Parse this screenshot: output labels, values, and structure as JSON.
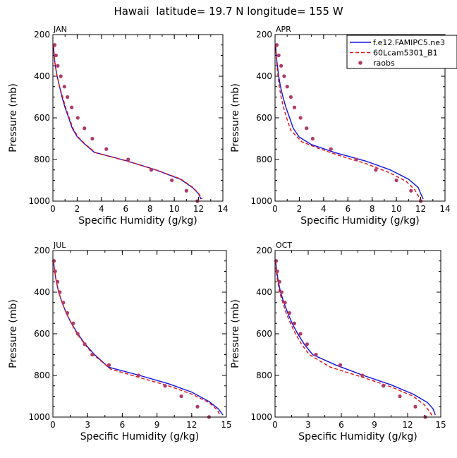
{
  "figure": {
    "title": "Hawaii  latitude= 19.7 N longitude= 155 W"
  },
  "colors": {
    "model1": "#1010e0",
    "model2": "#e01010",
    "obs": "#b03a6a",
    "axis": "#000000"
  },
  "legend": {
    "entries": [
      {
        "label": "f.e12.FAMIPC5.ne3",
        "style": "solid",
        "color": "#1010e0"
      },
      {
        "label": "60Lcam5301_B1",
        "style": "dashed",
        "color": "#e01010"
      },
      {
        "label": "raobs",
        "style": "dot",
        "color": "#b03a6a"
      }
    ]
  },
  "chart_data": [
    {
      "type": "line",
      "panel_label": "JAN",
      "xlabel": "Specific Humidity (g/kg)",
      "ylabel": "Pressure (mb)",
      "xlim": [
        0,
        14
      ],
      "xticks": [
        0,
        2,
        4,
        6,
        8,
        10,
        12,
        14
      ],
      "ylim": [
        1000,
        200
      ],
      "yticks": [
        200,
        400,
        600,
        800,
        1000
      ],
      "series": [
        {
          "name": "f.e12.FAMIPC5.ne3",
          "style": "solid",
          "points": [
            [
              0.05,
              250
            ],
            [
              0.1,
              300
            ],
            [
              0.2,
              350
            ],
            [
              0.35,
              400
            ],
            [
              0.55,
              450
            ],
            [
              0.75,
              500
            ],
            [
              1.0,
              550
            ],
            [
              1.3,
              600
            ],
            [
              1.6,
              650
            ],
            [
              2.0,
              690
            ],
            [
              2.6,
              725
            ],
            [
              3.4,
              765
            ],
            [
              6.0,
              805
            ],
            [
              8.5,
              850
            ],
            [
              10.5,
              895
            ],
            [
              11.5,
              935
            ],
            [
              12.0,
              965
            ],
            [
              12.2,
              990
            ]
          ]
        },
        {
          "name": "60Lcam5301_B1",
          "style": "dashed",
          "points": [
            [
              0.05,
              250
            ],
            [
              0.1,
              300
            ],
            [
              0.2,
              350
            ],
            [
              0.35,
              400
            ],
            [
              0.55,
              450
            ],
            [
              0.8,
              500
            ],
            [
              1.05,
              550
            ],
            [
              1.35,
              600
            ],
            [
              1.65,
              650
            ],
            [
              2.05,
              690
            ],
            [
              2.7,
              728
            ],
            [
              3.5,
              767
            ],
            [
              6.0,
              806
            ],
            [
              8.5,
              850
            ],
            [
              10.5,
              893
            ],
            [
              11.5,
              933
            ],
            [
              12.0,
              963
            ],
            [
              12.3,
              990
            ]
          ]
        },
        {
          "name": "raobs",
          "style": "dot",
          "points": [
            [
              0.15,
              250
            ],
            [
              0.25,
              300
            ],
            [
              0.4,
              350
            ],
            [
              0.65,
              400
            ],
            [
              0.95,
              450
            ],
            [
              1.2,
              500
            ],
            [
              1.55,
              550
            ],
            [
              2.05,
              600
            ],
            [
              2.6,
              650
            ],
            [
              3.25,
              700
            ],
            [
              4.4,
              750
            ],
            [
              6.2,
              800
            ],
            [
              8.1,
              850
            ],
            [
              9.8,
              900
            ],
            [
              11.0,
              950
            ],
            [
              11.9,
              1000
            ]
          ]
        }
      ]
    },
    {
      "type": "line",
      "panel_label": "APR",
      "xlabel": "Specific Humidity (g/kg)",
      "ylabel": "Pressure (mb)",
      "xlim": [
        0,
        14
      ],
      "xticks": [
        0,
        2,
        4,
        6,
        8,
        10,
        12,
        14
      ],
      "ylim": [
        1000,
        200
      ],
      "yticks": [
        200,
        400,
        600,
        800,
        1000
      ],
      "series": [
        {
          "name": "f.e12.FAMIPC5.ne3",
          "style": "solid",
          "points": [
            [
              0.05,
              250
            ],
            [
              0.1,
              300
            ],
            [
              0.2,
              350
            ],
            [
              0.3,
              400
            ],
            [
              0.45,
              450
            ],
            [
              0.65,
              500
            ],
            [
              0.9,
              550
            ],
            [
              1.2,
              600
            ],
            [
              1.5,
              650
            ],
            [
              2.0,
              693
            ],
            [
              3.0,
              728
            ],
            [
              5.0,
              768
            ],
            [
              7.5,
              808
            ],
            [
              9.5,
              850
            ],
            [
              11.0,
              895
            ],
            [
              11.8,
              935
            ],
            [
              12.0,
              965
            ],
            [
              12.2,
              990
            ]
          ]
        },
        {
          "name": "60Lcam5301_B1",
          "style": "dashed",
          "points": [
            [
              0.05,
              250
            ],
            [
              0.1,
              300
            ],
            [
              0.15,
              350
            ],
            [
              0.25,
              400
            ],
            [
              0.35,
              450
            ],
            [
              0.5,
              500
            ],
            [
              0.7,
              550
            ],
            [
              0.95,
              600
            ],
            [
              1.3,
              660
            ],
            [
              2.2,
              715
            ],
            [
              3.5,
              745
            ],
            [
              5.5,
              785
            ],
            [
              7.5,
              820
            ],
            [
              9.5,
              865
            ],
            [
              10.8,
              905
            ],
            [
              11.5,
              945
            ],
            [
              11.8,
              975
            ],
            [
              12.0,
              1000
            ]
          ]
        },
        {
          "name": "raobs",
          "style": "dot",
          "points": [
            [
              0.15,
              250
            ],
            [
              0.3,
              300
            ],
            [
              0.5,
              350
            ],
            [
              0.75,
              400
            ],
            [
              1.0,
              450
            ],
            [
              1.3,
              500
            ],
            [
              1.6,
              550
            ],
            [
              2.1,
              600
            ],
            [
              2.6,
              650
            ],
            [
              3.1,
              700
            ],
            [
              4.6,
              750
            ],
            [
              6.7,
              800
            ],
            [
              8.3,
              850
            ],
            [
              10.0,
              900
            ],
            [
              11.2,
              950
            ],
            [
              12.0,
              1000
            ]
          ]
        }
      ]
    },
    {
      "type": "line",
      "panel_label": "JUL",
      "xlabel": "Specific Humidity (g/kg)",
      "ylabel": "Pressure (mb)",
      "xlim": [
        0,
        15
      ],
      "xticks": [
        0,
        3,
        6,
        9,
        12,
        15
      ],
      "ylim": [
        1000,
        200
      ],
      "yticks": [
        200,
        400,
        600,
        800,
        1000
      ],
      "series": [
        {
          "name": "f.e12.FAMIPC5.ne3",
          "style": "solid",
          "points": [
            [
              0.05,
              250
            ],
            [
              0.15,
              300
            ],
            [
              0.3,
              350
            ],
            [
              0.5,
              400
            ],
            [
              0.8,
              450
            ],
            [
              1.15,
              500
            ],
            [
              1.6,
              550
            ],
            [
              2.15,
              600
            ],
            [
              2.8,
              650
            ],
            [
              3.6,
              700
            ],
            [
              4.8,
              760
            ],
            [
              7.5,
              800
            ],
            [
              10.0,
              840
            ],
            [
              12.0,
              880
            ],
            [
              13.5,
              925
            ],
            [
              14.3,
              960
            ],
            [
              14.7,
              990
            ]
          ]
        },
        {
          "name": "60Lcam5301_B1",
          "style": "dashed",
          "points": [
            [
              0.05,
              250
            ],
            [
              0.15,
              300
            ],
            [
              0.3,
              350
            ],
            [
              0.5,
              400
            ],
            [
              0.8,
              450
            ],
            [
              1.15,
              500
            ],
            [
              1.6,
              550
            ],
            [
              2.1,
              600
            ],
            [
              2.75,
              650
            ],
            [
              3.5,
              700
            ],
            [
              5.0,
              770
            ],
            [
              7.5,
              810
            ],
            [
              10.0,
              850
            ],
            [
              12.0,
              890
            ],
            [
              13.5,
              930
            ],
            [
              14.2,
              965
            ],
            [
              14.5,
              995
            ]
          ]
        },
        {
          "name": "raobs",
          "style": "dot",
          "points": [
            [
              0.1,
              250
            ],
            [
              0.2,
              300
            ],
            [
              0.4,
              350
            ],
            [
              0.6,
              400
            ],
            [
              0.9,
              450
            ],
            [
              1.25,
              500
            ],
            [
              1.75,
              550
            ],
            [
              2.15,
              600
            ],
            [
              2.75,
              650
            ],
            [
              3.4,
              700
            ],
            [
              4.85,
              750
            ],
            [
              7.4,
              800
            ],
            [
              9.7,
              850
            ],
            [
              11.1,
              900
            ],
            [
              12.5,
              950
            ],
            [
              13.5,
              1000
            ]
          ]
        }
      ]
    },
    {
      "type": "line",
      "panel_label": "OCT",
      "xlabel": "Specific Humidity (g/kg)",
      "ylabel": "Pressure (mb)",
      "xlim": [
        0,
        15
      ],
      "xticks": [
        0,
        3,
        6,
        9,
        12,
        15
      ],
      "ylim": [
        1000,
        200
      ],
      "yticks": [
        200,
        400,
        600,
        800,
        1000
      ],
      "series": [
        {
          "name": "f.e12.FAMIPC5.ne3",
          "style": "solid",
          "points": [
            [
              0.05,
              250
            ],
            [
              0.15,
              300
            ],
            [
              0.3,
              350
            ],
            [
              0.5,
              400
            ],
            [
              0.8,
              450
            ],
            [
              1.15,
              500
            ],
            [
              1.55,
              550
            ],
            [
              2.05,
              600
            ],
            [
              2.65,
              650
            ],
            [
              3.4,
              700
            ],
            [
              5.5,
              750
            ],
            [
              8.0,
              800
            ],
            [
              10.5,
              845
            ],
            [
              12.5,
              890
            ],
            [
              13.8,
              930
            ],
            [
              14.3,
              960
            ],
            [
              14.5,
              990
            ]
          ]
        },
        {
          "name": "60Lcam5301_B1",
          "style": "dashed",
          "points": [
            [
              0.05,
              250
            ],
            [
              0.1,
              300
            ],
            [
              0.25,
              350
            ],
            [
              0.4,
              400
            ],
            [
              0.7,
              450
            ],
            [
              1.0,
              500
            ],
            [
              1.4,
              550
            ],
            [
              1.85,
              600
            ],
            [
              2.4,
              650
            ],
            [
              3.1,
              700
            ],
            [
              5.0,
              760
            ],
            [
              8.0,
              810
            ],
            [
              10.5,
              855
            ],
            [
              12.5,
              900
            ],
            [
              13.5,
              940
            ],
            [
              14.0,
              975
            ],
            [
              14.3,
              1000
            ]
          ]
        },
        {
          "name": "raobs",
          "style": "dot",
          "points": [
            [
              0.1,
              250
            ],
            [
              0.2,
              300
            ],
            [
              0.4,
              350
            ],
            [
              0.6,
              400
            ],
            [
              0.9,
              450
            ],
            [
              1.3,
              500
            ],
            [
              1.75,
              550
            ],
            [
              2.3,
              600
            ],
            [
              2.9,
              650
            ],
            [
              3.7,
              700
            ],
            [
              5.9,
              750
            ],
            [
              7.9,
              800
            ],
            [
              9.8,
              850
            ],
            [
              11.3,
              900
            ],
            [
              12.7,
              950
            ],
            [
              13.6,
              1000
            ]
          ]
        }
      ]
    }
  ]
}
